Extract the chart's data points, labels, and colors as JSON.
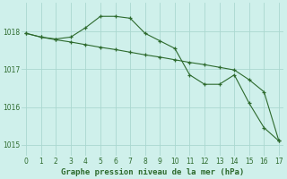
{
  "line1_x": [
    0,
    1,
    2,
    3,
    4,
    5,
    6,
    7,
    8,
    9,
    10,
    11,
    12,
    13,
    14,
    15,
    16,
    17
  ],
  "line1_y": [
    1017.95,
    1017.85,
    1017.8,
    1017.85,
    1018.1,
    1018.4,
    1018.4,
    1018.35,
    1017.95,
    1017.75,
    1017.55,
    1016.85,
    1016.6,
    1016.6,
    1016.85,
    1016.1,
    1015.45,
    1015.1
  ],
  "line2_x": [
    0,
    1,
    2,
    3,
    4,
    5,
    6,
    7,
    8,
    9,
    10,
    11,
    12,
    13,
    14,
    15,
    16,
    17
  ],
  "line2_y": [
    1017.95,
    1017.85,
    1017.78,
    1017.72,
    1017.65,
    1017.58,
    1017.52,
    1017.45,
    1017.38,
    1017.32,
    1017.25,
    1017.18,
    1017.12,
    1017.05,
    1016.98,
    1016.72,
    1016.4,
    1015.1
  ],
  "line_color": "#2d6a2d",
  "bg_color": "#cff0eb",
  "grid_color": "#aad8d0",
  "xlabel": "Graphe pression niveau de la mer (hPa)",
  "ylim": [
    1014.7,
    1018.75
  ],
  "xlim": [
    -0.3,
    17.3
  ],
  "yticks": [
    1015,
    1016,
    1017,
    1018
  ],
  "xticks": [
    0,
    1,
    2,
    3,
    4,
    5,
    6,
    7,
    8,
    9,
    10,
    11,
    12,
    13,
    14,
    15,
    16,
    17
  ]
}
